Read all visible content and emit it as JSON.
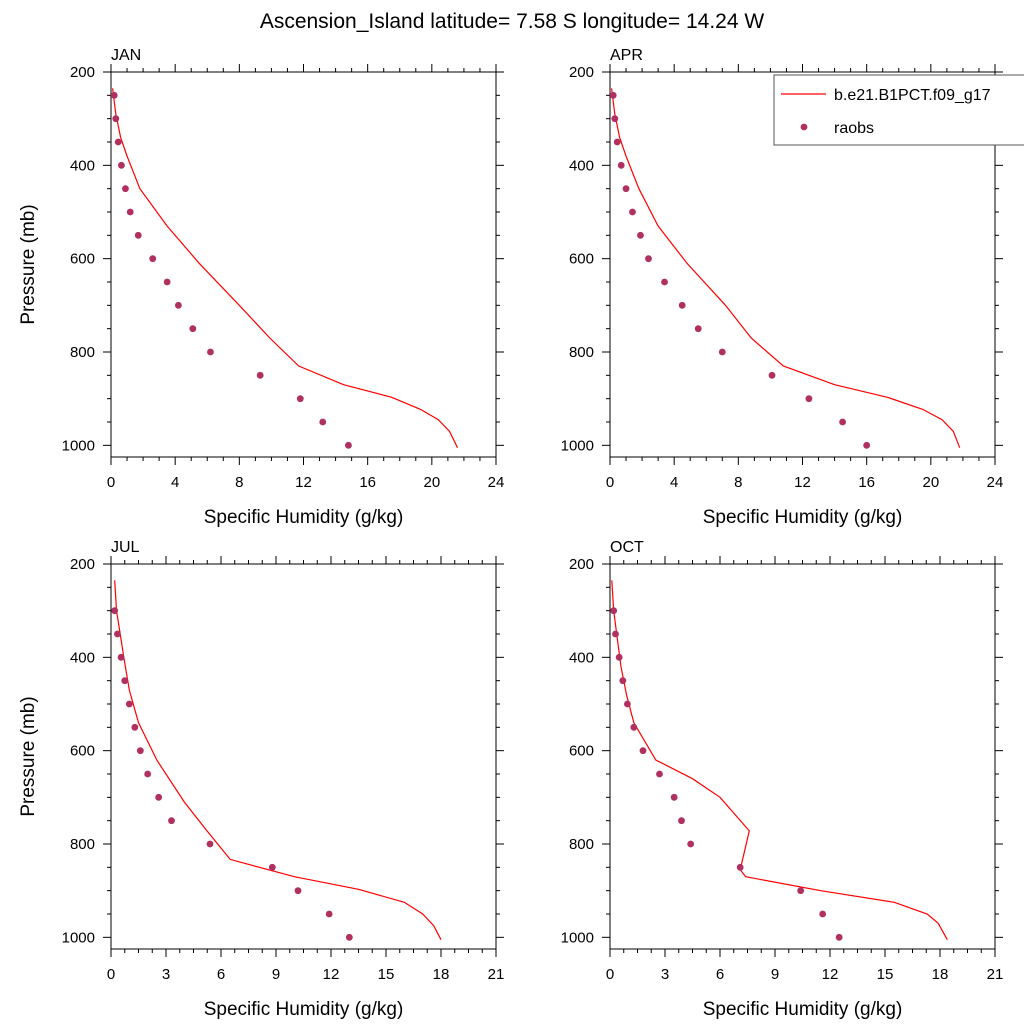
{
  "figure": {
    "title": "Ascension_Island  latitude= 7.58 S longitude= 14.24 W"
  },
  "legend": {
    "model_label": "b.e21.B1PCT.f09_g17",
    "obs_label": "raobs",
    "placement": "top-right of APR panel"
  },
  "colors": {
    "model_line": "#ff0000",
    "obs_marker": "#b03060",
    "axis": "#000000"
  },
  "chart_data": [
    {
      "type": "scatter",
      "panel_title": "JAN",
      "xlabel": "Specific Humidity (g/kg)",
      "ylabel": "Pressure (mb)",
      "xlim": [
        0,
        24
      ],
      "ylim": [
        1025,
        200
      ],
      "y_reversed": true,
      "xticks": [
        0,
        4,
        8,
        12,
        16,
        20,
        24
      ],
      "yticks": [
        200,
        400,
        600,
        800,
        1000
      ],
      "series": [
        {
          "name": "b.e21.B1PCT.f09_g17",
          "kind": "line",
          "points": [
            [
              0.1,
              235
            ],
            [
              0.3,
              290
            ],
            [
              0.6,
              340
            ],
            [
              1.0,
              380
            ],
            [
              1.8,
              450
            ],
            [
              3.5,
              530
            ],
            [
              5.5,
              610
            ],
            [
              8.0,
              700
            ],
            [
              9.9,
              770
            ],
            [
              11.7,
              830
            ],
            [
              14.5,
              870
            ],
            [
              17.5,
              897
            ],
            [
              19.3,
              923
            ],
            [
              20.4,
              945
            ],
            [
              21.1,
              970
            ],
            [
              21.6,
              1005
            ]
          ]
        },
        {
          "name": "raobs",
          "kind": "markers",
          "points": [
            [
              0.2,
              250
            ],
            [
              0.3,
              300
            ],
            [
              0.45,
              350
            ],
            [
              0.65,
              400
            ],
            [
              0.9,
              450
            ],
            [
              1.2,
              500
            ],
            [
              1.7,
              550
            ],
            [
              2.6,
              600
            ],
            [
              3.5,
              650
            ],
            [
              4.2,
              700
            ],
            [
              5.1,
              750
            ],
            [
              6.2,
              800
            ],
            [
              9.3,
              850
            ],
            [
              11.8,
              900
            ],
            [
              13.2,
              950
            ],
            [
              14.8,
              1000
            ]
          ]
        }
      ]
    },
    {
      "type": "scatter",
      "panel_title": "APR",
      "xlabel": "Specific Humidity (g/kg)",
      "ylabel": "",
      "xlim": [
        0,
        24
      ],
      "ylim": [
        1025,
        200
      ],
      "y_reversed": true,
      "xticks": [
        0,
        4,
        8,
        12,
        16,
        20,
        24
      ],
      "yticks": [
        200,
        400,
        600,
        800,
        1000
      ],
      "series": [
        {
          "name": "b.e21.B1PCT.f09_g17",
          "kind": "line",
          "points": [
            [
              0.1,
              235
            ],
            [
              0.3,
              290
            ],
            [
              0.6,
              340
            ],
            [
              1.0,
              380
            ],
            [
              1.8,
              450
            ],
            [
              3.0,
              530
            ],
            [
              4.8,
              610
            ],
            [
              7.2,
              700
            ],
            [
              8.8,
              770
            ],
            [
              10.8,
              830
            ],
            [
              14.0,
              870
            ],
            [
              17.3,
              897
            ],
            [
              19.5,
              923
            ],
            [
              20.7,
              945
            ],
            [
              21.4,
              970
            ],
            [
              21.8,
              1005
            ]
          ]
        },
        {
          "name": "raobs",
          "kind": "markers",
          "points": [
            [
              0.2,
              250
            ],
            [
              0.3,
              300
            ],
            [
              0.45,
              350
            ],
            [
              0.7,
              400
            ],
            [
              1.0,
              450
            ],
            [
              1.4,
              500
            ],
            [
              1.9,
              550
            ],
            [
              2.4,
              600
            ],
            [
              3.4,
              650
            ],
            [
              4.5,
              700
            ],
            [
              5.5,
              750
            ],
            [
              7.0,
              800
            ],
            [
              10.1,
              850
            ],
            [
              12.4,
              900
            ],
            [
              14.5,
              950
            ],
            [
              16.0,
              1000
            ]
          ]
        }
      ]
    },
    {
      "type": "scatter",
      "panel_title": "JUL",
      "xlabel": "Specific Humidity (g/kg)",
      "ylabel": "Pressure (mb)",
      "xlim": [
        0,
        21
      ],
      "ylim": [
        1025,
        200
      ],
      "y_reversed": true,
      "xticks": [
        0,
        3,
        6,
        9,
        12,
        15,
        18,
        21
      ],
      "yticks": [
        200,
        400,
        600,
        800,
        1000
      ],
      "series": [
        {
          "name": "b.e21.B1PCT.f09_g17",
          "kind": "line",
          "points": [
            [
              0.2,
              235
            ],
            [
              0.3,
              300
            ],
            [
              0.5,
              350
            ],
            [
              0.7,
              400
            ],
            [
              1.0,
              470
            ],
            [
              1.5,
              540
            ],
            [
              2.5,
              620
            ],
            [
              4.0,
              710
            ],
            [
              5.2,
              770
            ],
            [
              6.5,
              833
            ],
            [
              10.0,
              870
            ],
            [
              13.5,
              897
            ],
            [
              16.0,
              925
            ],
            [
              17.0,
              950
            ],
            [
              17.6,
              975
            ],
            [
              18.0,
              1005
            ]
          ]
        },
        {
          "name": "raobs",
          "kind": "markers",
          "points": [
            [
              0.2,
              300
            ],
            [
              0.35,
              350
            ],
            [
              0.55,
              400
            ],
            [
              0.75,
              450
            ],
            [
              1.0,
              500
            ],
            [
              1.3,
              550
            ],
            [
              1.6,
              600
            ],
            [
              2.0,
              650
            ],
            [
              2.6,
              700
            ],
            [
              3.3,
              750
            ],
            [
              5.4,
              800
            ],
            [
              8.8,
              850
            ],
            [
              10.2,
              900
            ],
            [
              11.9,
              950
            ],
            [
              13.0,
              1000
            ]
          ]
        }
      ]
    },
    {
      "type": "scatter",
      "panel_title": "OCT",
      "xlabel": "Specific Humidity (g/kg)",
      "ylabel": "",
      "xlim": [
        0,
        21
      ],
      "ylim": [
        1025,
        200
      ],
      "y_reversed": true,
      "xticks": [
        0,
        3,
        6,
        9,
        12,
        15,
        18,
        21
      ],
      "yticks": [
        200,
        400,
        600,
        800,
        1000
      ],
      "series": [
        {
          "name": "b.e21.B1PCT.f09_g17",
          "kind": "line",
          "points": [
            [
              0.1,
              235
            ],
            [
              0.2,
              300
            ],
            [
              0.4,
              360
            ],
            [
              0.6,
              420
            ],
            [
              0.9,
              480
            ],
            [
              1.3,
              540
            ],
            [
              2.5,
              620
            ],
            [
              4.5,
              660
            ],
            [
              6.0,
              700
            ],
            [
              7.6,
              772
            ],
            [
              7.1,
              855
            ],
            [
              7.4,
              870
            ],
            [
              11.5,
              900
            ],
            [
              15.5,
              925
            ],
            [
              17.3,
              950
            ],
            [
              17.9,
              970
            ],
            [
              18.4,
              1005
            ]
          ]
        },
        {
          "name": "raobs",
          "kind": "markers",
          "points": [
            [
              0.2,
              300
            ],
            [
              0.3,
              350
            ],
            [
              0.5,
              400
            ],
            [
              0.7,
              450
            ],
            [
              0.95,
              500
            ],
            [
              1.3,
              550
            ],
            [
              1.8,
              600
            ],
            [
              2.7,
              650
            ],
            [
              3.5,
              700
            ],
            [
              3.9,
              750
            ],
            [
              4.4,
              800
            ],
            [
              7.1,
              850
            ],
            [
              10.4,
              900
            ],
            [
              11.6,
              950
            ],
            [
              12.5,
              1000
            ]
          ]
        }
      ]
    }
  ]
}
